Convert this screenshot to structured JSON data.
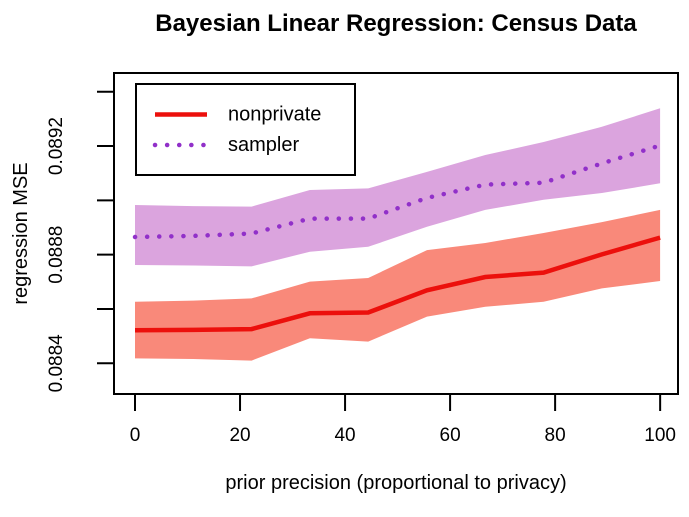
{
  "title": "Bayesian Linear Regression: Census Data",
  "chart_data": {
    "type": "line",
    "title": "Bayesian Linear Regression: Census Data",
    "xlabel": "prior precision (proportional to privacy)",
    "ylabel": "regression MSE",
    "grid": false,
    "legend_position": "top-left",
    "x_axis": {
      "label": "prior precision (proportional to privacy)",
      "range": [
        -4.0,
        103.4
      ],
      "ticks": [
        {
          "value": 0,
          "label": "0"
        },
        {
          "value": 20,
          "label": "20"
        },
        {
          "value": 40,
          "label": "40"
        },
        {
          "value": 60,
          "label": "60"
        },
        {
          "value": 80,
          "label": "80"
        },
        {
          "value": 100,
          "label": "100"
        }
      ]
    },
    "y_axis": {
      "label": "regression MSE",
      "range": [
        0.088287,
        0.089469
      ],
      "ticks": [
        {
          "value": 0.0884,
          "label": "0.0884"
        },
        {
          "value": 0.0886,
          "label": ""
        },
        {
          "value": 0.0888,
          "label": "0.0888"
        },
        {
          "value": 0.089,
          "label": ""
        },
        {
          "value": 0.0892,
          "label": "0.0892"
        },
        {
          "value": 0.0894,
          "label": ""
        }
      ]
    },
    "x": [
      0,
      11.1,
      22.2,
      33.3,
      44.4,
      55.6,
      66.7,
      77.8,
      88.9,
      100
    ],
    "series": [
      {
        "name": "nonprivate",
        "line_style": "solid",
        "color": "#ec100c",
        "band_color": "#f9897a",
        "values": [
          0.088522,
          0.088523,
          0.088526,
          0.088584,
          0.088587,
          0.088669,
          0.088718,
          0.088734,
          0.088801,
          0.088863
        ],
        "band_upper": [
          0.088627,
          0.088631,
          0.088639,
          0.088701,
          0.088714,
          0.088817,
          0.088843,
          0.08888,
          0.08892,
          0.088965
        ],
        "band_lower": [
          0.088418,
          0.088416,
          0.08841,
          0.088492,
          0.08848,
          0.088572,
          0.088608,
          0.088627,
          0.088676,
          0.088703
        ]
      },
      {
        "name": "sampler",
        "line_style": "dotted",
        "color": "#9130c9",
        "band_color": "#dba4de",
        "values": [
          0.088865,
          0.088869,
          0.088878,
          0.088933,
          0.088933,
          0.089009,
          0.089058,
          0.089065,
          0.089136,
          0.089202
        ],
        "band_upper": [
          0.088983,
          0.088979,
          0.088977,
          0.089038,
          0.089044,
          0.089105,
          0.089167,
          0.089215,
          0.089271,
          0.089339
        ],
        "band_lower": [
          0.088762,
          0.08876,
          0.088757,
          0.088811,
          0.088829,
          0.088903,
          0.088965,
          0.089002,
          0.089027,
          0.089063
        ]
      }
    ],
    "legend": {
      "entries": [
        "nonprivate",
        "sampler"
      ]
    }
  }
}
